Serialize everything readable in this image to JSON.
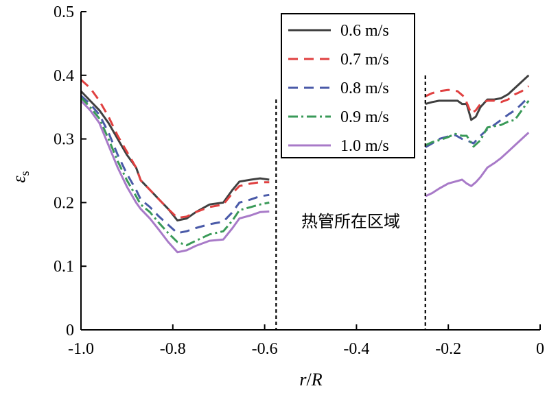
{
  "chart_data": {
    "type": "line",
    "xlabel_main": "r",
    "xlabel_sep": "/",
    "xlabel_den": "R",
    "ylabel_main": "ε",
    "ylabel_sub": "s",
    "xlim": [
      -1.0,
      0
    ],
    "ylim": [
      0,
      0.5
    ],
    "xticks": [
      -1.0,
      -0.8,
      -0.6,
      -0.4,
      -0.2,
      0
    ],
    "xtick_labels": [
      "-1.0",
      "-0.8",
      "-0.6",
      "-0.4",
      "-0.2",
      "0"
    ],
    "yticks": [
      0,
      0.1,
      0.2,
      0.3,
      0.4,
      0.5
    ],
    "ytick_labels": [
      "0",
      "0.1",
      "0.2",
      "0.3",
      "0.4",
      "0.5"
    ],
    "annotation": "热管所在区域",
    "region_bounds": [
      -0.575,
      -0.25
    ],
    "legend_position": "top-center",
    "series": [
      {
        "name": "0.6 m/s",
        "color": "#404040",
        "dash": "solid",
        "segments": [
          [
            [
              -1.0,
              0.375
            ],
            [
              -0.98,
              0.36
            ],
            [
              -0.96,
              0.345
            ],
            [
              -0.94,
              0.325
            ],
            [
              -0.92,
              0.3
            ],
            [
              -0.9,
              0.275
            ],
            [
              -0.88,
              0.255
            ],
            [
              -0.87,
              0.235
            ],
            [
              -0.85,
              0.22
            ],
            [
              -0.83,
              0.205
            ],
            [
              -0.81,
              0.19
            ],
            [
              -0.79,
              0.172
            ],
            [
              -0.77,
              0.175
            ],
            [
              -0.75,
              0.185
            ],
            [
              -0.72,
              0.197
            ],
            [
              -0.69,
              0.2
            ],
            [
              -0.67,
              0.22
            ],
            [
              -0.655,
              0.233
            ],
            [
              -0.63,
              0.236
            ],
            [
              -0.61,
              0.238
            ],
            [
              -0.59,
              0.236
            ]
          ],
          [
            [
              -0.25,
              0.355
            ],
            [
              -0.235,
              0.358
            ],
            [
              -0.22,
              0.36
            ],
            [
              -0.2,
              0.36
            ],
            [
              -0.18,
              0.36
            ],
            [
              -0.17,
              0.355
            ],
            [
              -0.16,
              0.355
            ],
            [
              -0.15,
              0.33
            ],
            [
              -0.14,
              0.335
            ],
            [
              -0.13,
              0.35
            ],
            [
              -0.115,
              0.362
            ],
            [
              -0.1,
              0.362
            ],
            [
              -0.085,
              0.364
            ],
            [
              -0.07,
              0.37
            ],
            [
              -0.055,
              0.38
            ],
            [
              -0.04,
              0.39
            ],
            [
              -0.025,
              0.4
            ]
          ]
        ]
      },
      {
        "name": "0.7 m/s",
        "color": "#e04040",
        "dash": "dashed",
        "segments": [
          [
            [
              -1.0,
              0.393
            ],
            [
              -0.98,
              0.38
            ],
            [
              -0.96,
              0.36
            ],
            [
              -0.94,
              0.335
            ],
            [
              -0.92,
              0.305
            ],
            [
              -0.9,
              0.28
            ],
            [
              -0.88,
              0.255
            ],
            [
              -0.87,
              0.235
            ],
            [
              -0.85,
              0.22
            ],
            [
              -0.83,
              0.205
            ],
            [
              -0.81,
              0.19
            ],
            [
              -0.79,
              0.176
            ],
            [
              -0.77,
              0.178
            ],
            [
              -0.75,
              0.185
            ],
            [
              -0.72,
              0.193
            ],
            [
              -0.69,
              0.197
            ],
            [
              -0.67,
              0.215
            ],
            [
              -0.655,
              0.226
            ],
            [
              -0.63,
              0.23
            ],
            [
              -0.61,
              0.232
            ],
            [
              -0.59,
              0.232
            ]
          ],
          [
            [
              -0.25,
              0.367
            ],
            [
              -0.235,
              0.372
            ],
            [
              -0.22,
              0.375
            ],
            [
              -0.2,
              0.377
            ],
            [
              -0.18,
              0.375
            ],
            [
              -0.165,
              0.366
            ],
            [
              -0.15,
              0.34
            ],
            [
              -0.14,
              0.345
            ],
            [
              -0.13,
              0.355
            ],
            [
              -0.115,
              0.36
            ],
            [
              -0.1,
              0.36
            ],
            [
              -0.085,
              0.358
            ],
            [
              -0.07,
              0.362
            ],
            [
              -0.055,
              0.37
            ],
            [
              -0.04,
              0.375
            ],
            [
              -0.025,
              0.383
            ]
          ]
        ]
      },
      {
        "name": "0.8 m/s",
        "color": "#4a5aa8",
        "dash": "dashed",
        "segments": [
          [
            [
              -1.0,
              0.368
            ],
            [
              -0.98,
              0.355
            ],
            [
              -0.96,
              0.338
            ],
            [
              -0.94,
              0.31
            ],
            [
              -0.92,
              0.275
            ],
            [
              -0.9,
              0.245
            ],
            [
              -0.88,
              0.22
            ],
            [
              -0.87,
              0.205
            ],
            [
              -0.85,
              0.193
            ],
            [
              -0.83,
              0.178
            ],
            [
              -0.81,
              0.165
            ],
            [
              -0.79,
              0.152
            ],
            [
              -0.77,
              0.155
            ],
            [
              -0.75,
              0.16
            ],
            [
              -0.72,
              0.166
            ],
            [
              -0.69,
              0.17
            ],
            [
              -0.67,
              0.185
            ],
            [
              -0.655,
              0.2
            ],
            [
              -0.63,
              0.205
            ],
            [
              -0.61,
              0.21
            ],
            [
              -0.59,
              0.212
            ]
          ],
          [
            [
              -0.25,
              0.287
            ],
            [
              -0.235,
              0.293
            ],
            [
              -0.22,
              0.3
            ],
            [
              -0.2,
              0.304
            ],
            [
              -0.185,
              0.306
            ],
            [
              -0.17,
              0.3
            ],
            [
              -0.16,
              0.298
            ],
            [
              -0.145,
              0.293
            ],
            [
              -0.13,
              0.305
            ],
            [
              -0.115,
              0.315
            ],
            [
              -0.1,
              0.322
            ],
            [
              -0.085,
              0.33
            ],
            [
              -0.07,
              0.338
            ],
            [
              -0.055,
              0.345
            ],
            [
              -0.04,
              0.355
            ],
            [
              -0.025,
              0.366
            ]
          ]
        ]
      },
      {
        "name": "0.9 m/s",
        "color": "#3a9a58",
        "dash": "dashdot",
        "segments": [
          [
            [
              -1.0,
              0.365
            ],
            [
              -0.98,
              0.35
            ],
            [
              -0.96,
              0.332
            ],
            [
              -0.94,
              0.3
            ],
            [
              -0.92,
              0.265
            ],
            [
              -0.9,
              0.235
            ],
            [
              -0.88,
              0.21
            ],
            [
              -0.87,
              0.197
            ],
            [
              -0.85,
              0.185
            ],
            [
              -0.83,
              0.168
            ],
            [
              -0.81,
              0.152
            ],
            [
              -0.79,
              0.138
            ],
            [
              -0.77,
              0.133
            ],
            [
              -0.75,
              0.14
            ],
            [
              -0.72,
              0.15
            ],
            [
              -0.69,
              0.155
            ],
            [
              -0.67,
              0.172
            ],
            [
              -0.655,
              0.188
            ],
            [
              -0.63,
              0.193
            ],
            [
              -0.61,
              0.197
            ],
            [
              -0.59,
              0.2
            ]
          ],
          [
            [
              -0.25,
              0.29
            ],
            [
              -0.235,
              0.295
            ],
            [
              -0.22,
              0.298
            ],
            [
              -0.2,
              0.303
            ],
            [
              -0.185,
              0.308
            ],
            [
              -0.17,
              0.305
            ],
            [
              -0.16,
              0.305
            ],
            [
              -0.145,
              0.288
            ],
            [
              -0.13,
              0.298
            ],
            [
              -0.115,
              0.318
            ],
            [
              -0.1,
              0.32
            ],
            [
              -0.085,
              0.322
            ],
            [
              -0.07,
              0.327
            ],
            [
              -0.055,
              0.33
            ],
            [
              -0.04,
              0.345
            ],
            [
              -0.025,
              0.36
            ]
          ]
        ]
      },
      {
        "name": "1.0 m/s",
        "color": "#a87ac8",
        "dash": "solid",
        "segments": [
          [
            [
              -1.0,
              0.36
            ],
            [
              -0.98,
              0.345
            ],
            [
              -0.96,
              0.325
            ],
            [
              -0.94,
              0.29
            ],
            [
              -0.92,
              0.255
            ],
            [
              -0.9,
              0.225
            ],
            [
              -0.88,
              0.2
            ],
            [
              -0.87,
              0.19
            ],
            [
              -0.85,
              0.175
            ],
            [
              -0.83,
              0.157
            ],
            [
              -0.81,
              0.138
            ],
            [
              -0.79,
              0.122
            ],
            [
              -0.77,
              0.125
            ],
            [
              -0.75,
              0.132
            ],
            [
              -0.72,
              0.14
            ],
            [
              -0.69,
              0.142
            ],
            [
              -0.67,
              0.16
            ],
            [
              -0.655,
              0.175
            ],
            [
              -0.63,
              0.18
            ],
            [
              -0.61,
              0.185
            ],
            [
              -0.59,
              0.186
            ]
          ],
          [
            [
              -0.25,
              0.21
            ],
            [
              -0.235,
              0.215
            ],
            [
              -0.22,
              0.222
            ],
            [
              -0.2,
              0.23
            ],
            [
              -0.185,
              0.233
            ],
            [
              -0.17,
              0.236
            ],
            [
              -0.16,
              0.23
            ],
            [
              -0.15,
              0.226
            ],
            [
              -0.14,
              0.232
            ],
            [
              -0.13,
              0.24
            ],
            [
              -0.115,
              0.255
            ],
            [
              -0.1,
              0.262
            ],
            [
              -0.085,
              0.27
            ],
            [
              -0.07,
              0.28
            ],
            [
              -0.055,
              0.29
            ],
            [
              -0.04,
              0.3
            ],
            [
              -0.025,
              0.31
            ]
          ]
        ]
      }
    ]
  }
}
